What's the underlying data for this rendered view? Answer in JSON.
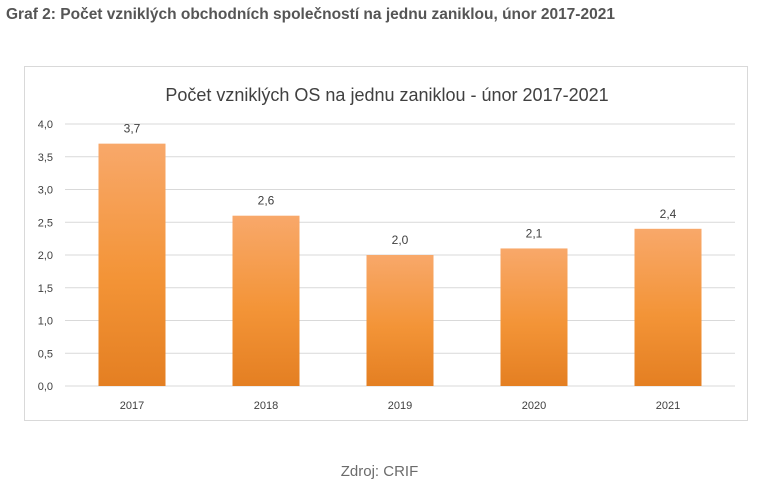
{
  "caption": "Graf 2: Počet vzniklých obchodních společností na jednu zaniklou, únor 2017-2021",
  "source": "Zdroj: CRIF",
  "chart_data": {
    "type": "bar",
    "title": "Počet vzniklých OS na jednu zaniklou - únor 2017-2021",
    "categories": [
      "2017",
      "2018",
      "2019",
      "2020",
      "2021"
    ],
    "values": [
      3.7,
      2.6,
      2.0,
      2.1,
      2.4
    ],
    "data_labels": [
      "3,7",
      "2,6",
      "2,0",
      "2,1",
      "2,4"
    ],
    "y_ticks": [
      "0,0",
      "0,5",
      "1,0",
      "1,5",
      "2,0",
      "2,5",
      "3,0",
      "3,5",
      "4,0"
    ],
    "ylim": [
      0,
      4
    ],
    "grid": true,
    "xlabel": "",
    "ylabel": "",
    "colors": {
      "bar_top": "#f8a86a",
      "bar_mid": "#f39437",
      "bar_bottom": "#e47f22",
      "grid": "#d9d9d9",
      "text": "#404040"
    }
  }
}
